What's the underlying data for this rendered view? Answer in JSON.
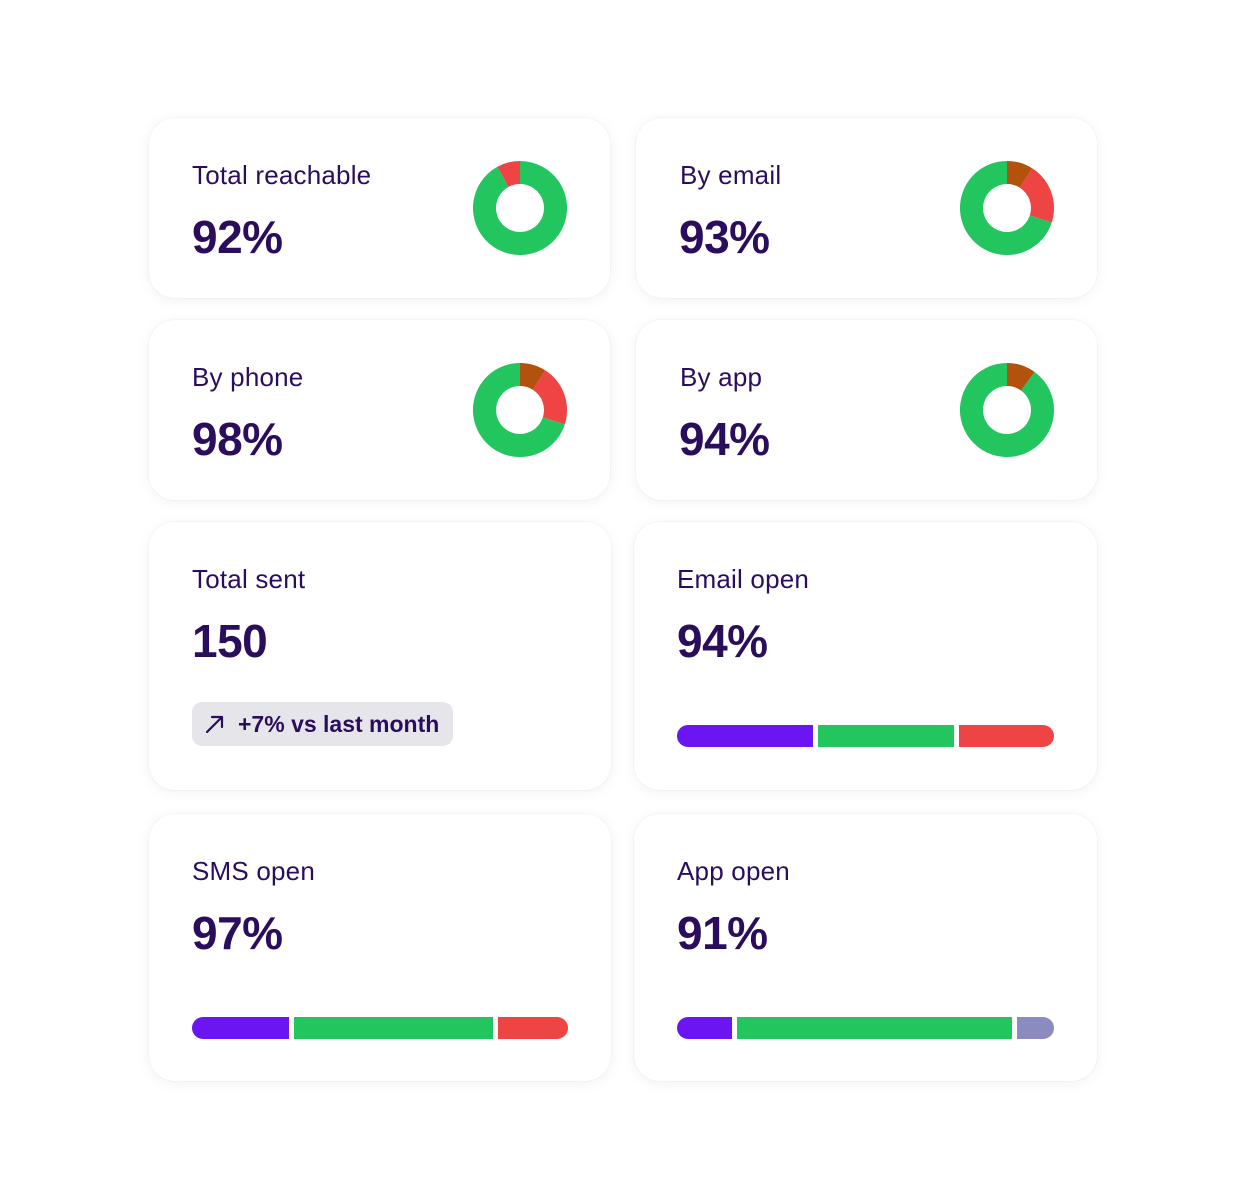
{
  "colors": {
    "green": "#22c55e",
    "red": "#ef4444",
    "brown": "#b3520d",
    "purple": "#6b16f2",
    "lavender": "#8a8bbf",
    "text": "#2a0d5c"
  },
  "cards": {
    "total_reachable": {
      "label": "Total reachable",
      "value": "92%",
      "donut": [
        {
          "name": "green",
          "percent": 92,
          "color": "#22c55e"
        },
        {
          "name": "red",
          "percent": 8,
          "color": "#ef4444"
        }
      ]
    },
    "by_email": {
      "label": "By email",
      "value": "93%",
      "donut": [
        {
          "name": "brown",
          "percent": 9,
          "color": "#b3520d"
        },
        {
          "name": "red",
          "percent": 21,
          "color": "#ef4444"
        },
        {
          "name": "green",
          "percent": 70,
          "color": "#22c55e"
        }
      ]
    },
    "by_phone": {
      "label": "By phone",
      "value": "98%",
      "donut": [
        {
          "name": "brown",
          "percent": 9,
          "color": "#b3520d"
        },
        {
          "name": "red",
          "percent": 21,
          "color": "#ef4444"
        },
        {
          "name": "green",
          "percent": 70,
          "color": "#22c55e"
        }
      ]
    },
    "by_app": {
      "label": "By app",
      "value": "94%",
      "donut": [
        {
          "name": "brown",
          "percent": 10,
          "color": "#b3520d"
        },
        {
          "name": "green",
          "percent": 90,
          "color": "#22c55e"
        }
      ]
    },
    "total_sent": {
      "label": "Total sent",
      "value": "150",
      "badge": {
        "icon": "trend-up-arrow-icon",
        "text": "+7% vs last month"
      }
    },
    "email_open": {
      "label": "Email open",
      "value": "94%",
      "bar": [
        {
          "name": "purple",
          "percent": 37,
          "color": "#6b16f2"
        },
        {
          "name": "green",
          "percent": 37,
          "color": "#22c55e"
        },
        {
          "name": "red",
          "percent": 26,
          "color": "#ef4444"
        }
      ]
    },
    "sms_open": {
      "label": "SMS open",
      "value": "97%",
      "bar": [
        {
          "name": "purple",
          "percent": 26.5,
          "color": "#6b16f2"
        },
        {
          "name": "green",
          "percent": 54.5,
          "color": "#22c55e"
        },
        {
          "name": "red",
          "percent": 19,
          "color": "#ef4444"
        }
      ]
    },
    "app_open": {
      "label": "App open",
      "value": "91%",
      "bar": [
        {
          "name": "purple",
          "percent": 15,
          "color": "#6b16f2"
        },
        {
          "name": "green",
          "percent": 75,
          "color": "#22c55e"
        },
        {
          "name": "lavender",
          "percent": 10,
          "color": "#8a8bbf"
        }
      ]
    }
  }
}
